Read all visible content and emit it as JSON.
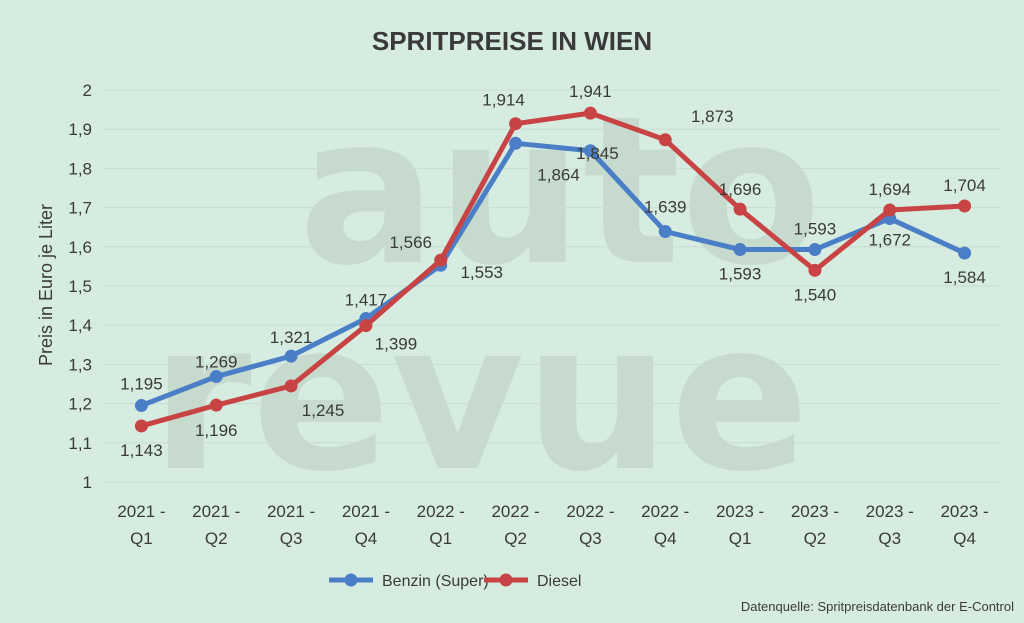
{
  "watermark": [
    "auto",
    "revue"
  ],
  "colors": {
    "benzin": "#4a7fc7",
    "diesel": "#c84444"
  },
  "chart_data": {
    "type": "line",
    "title": "SPRITPREISE IN WIEN",
    "xlabel": "",
    "ylabel": "Preis in Euro je Liter",
    "ylim": [
      1,
      2
    ],
    "yticks": [
      "1",
      "1,1",
      "1,2",
      "1,3",
      "1,4",
      "1,5",
      "1,6",
      "1,7",
      "1,8",
      "1,9",
      "2"
    ],
    "grid": true,
    "legend_position": "bottom",
    "categories": [
      [
        "2021 -",
        "Q1"
      ],
      [
        "2021 -",
        "Q2"
      ],
      [
        "2021 -",
        "Q3"
      ],
      [
        "2021 -",
        "Q4"
      ],
      [
        "2022 -",
        "Q1"
      ],
      [
        "2022 -",
        "Q2"
      ],
      [
        "2022 -",
        "Q3"
      ],
      [
        "2022 -",
        "Q4"
      ],
      [
        "2023 -",
        "Q1"
      ],
      [
        "2023 -",
        "Q2"
      ],
      [
        "2023 -",
        "Q3"
      ],
      [
        "2023 -",
        "Q4"
      ]
    ],
    "series": [
      {
        "name": "Benzin (Super)",
        "values": [
          1.195,
          1.269,
          1.321,
          1.417,
          1.553,
          1.864,
          1.845,
          1.639,
          1.593,
          1.593,
          1.672,
          1.584
        ],
        "labels": [
          "1,195",
          "1,269",
          "1,321",
          "1,417",
          "1,553",
          "1,864",
          "1,845",
          "1,639",
          "1,593",
          "1,593",
          "1,672",
          "1,584"
        ]
      },
      {
        "name": "Diesel",
        "values": [
          1.143,
          1.196,
          1.245,
          1.399,
          1.566,
          1.914,
          1.941,
          1.873,
          1.696,
          1.54,
          1.694,
          1.704
        ],
        "labels": [
          "1,143",
          "1,196",
          "1,245",
          "1,399",
          "1,566",
          "1,914",
          "1,941",
          "1,873",
          "1,696",
          "1,540",
          "1,694",
          "1,704"
        ]
      }
    ],
    "source": "Datenquelle: Spritpreisdatenbank der E-Control"
  }
}
